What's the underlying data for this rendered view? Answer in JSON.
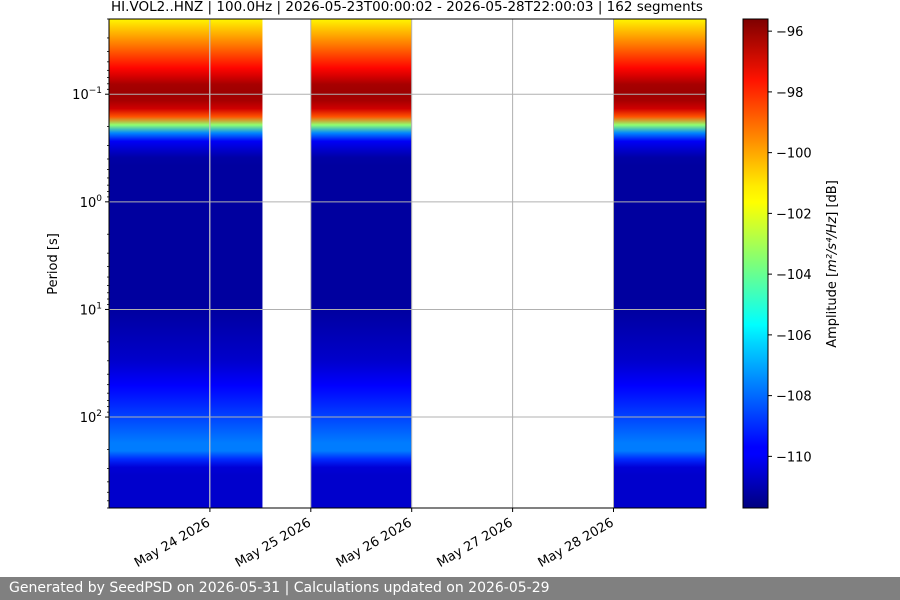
{
  "chart_data": {
    "type": "heatmap",
    "title": "HI.VOL2..HNZ | 100.0Hz | 2026-05-23T00:00:02 - 2026-05-28T22:00:03 | 162 segments",
    "ylabel": "Period [s]",
    "y_scale": "log",
    "y_inverted": true,
    "ylim": [
      0.02,
      700
    ],
    "xlim": [
      "2026-05-23T00:00",
      "2026-05-28T22:00"
    ],
    "x_ticks": [
      {
        "value": "2026-05-24T00:00",
        "label": "May 24 2026"
      },
      {
        "value": "2026-05-25T00:00",
        "label": "May 25 2026"
      },
      {
        "value": "2026-05-26T00:00",
        "label": "May 26 2026"
      },
      {
        "value": "2026-05-27T00:00",
        "label": "May 27 2026"
      },
      {
        "value": "2026-05-28T00:00",
        "label": "May 28 2026"
      }
    ],
    "y_ticks": [
      {
        "value": 0.1,
        "base": "10",
        "exp": "−1"
      },
      {
        "value": 1,
        "base": "10",
        "exp": "0"
      },
      {
        "value": 10,
        "base": "10",
        "exp": "1"
      },
      {
        "value": 100,
        "base": "10",
        "exp": "2"
      }
    ],
    "grid": true,
    "colormap": "jet",
    "colorbar": {
      "label_prefix": "Amplitude [",
      "label_math": "m²/s⁴/Hz",
      "label_suffix": "] [dB]",
      "range": [
        -111.7,
        -95.6
      ],
      "ticks": [
        -96,
        -98,
        -100,
        -102,
        -104,
        -106,
        -108,
        -110
      ]
    },
    "data_segments": [
      {
        "start": "2026-05-23T00:00",
        "end": "2026-05-23T23:50"
      },
      {
        "start": "2026-05-24T00:05",
        "end": "2026-05-24T12:30"
      },
      {
        "start": "2026-05-25T00:00",
        "end": "2026-05-25T23:55"
      },
      {
        "start": "2026-05-28T00:00",
        "end": "2026-05-28T22:00"
      }
    ],
    "amplitude_profile": [
      {
        "period": 0.02,
        "db": -101.5
      },
      {
        "period": 0.04,
        "db": -99.0
      },
      {
        "period": 0.06,
        "db": -97.5
      },
      {
        "period": 0.085,
        "db": -96.0
      },
      {
        "period": 0.13,
        "db": -96.3
      },
      {
        "period": 0.17,
        "db": -99.5
      },
      {
        "period": 0.2,
        "db": -104.5
      },
      {
        "period": 0.25,
        "db": -109.5
      },
      {
        "period": 0.4,
        "db": -111.2
      },
      {
        "period": 10,
        "db": -111.2
      },
      {
        "period": 30,
        "db": -110.5
      },
      {
        "period": 80,
        "db": -109.0
      },
      {
        "period": 200,
        "db": -107.5
      },
      {
        "period": 300,
        "db": -110.5
      },
      {
        "period": 700,
        "db": -110.5
      }
    ]
  },
  "footer": {
    "text": "Generated by SeedPSD on 2026-05-31 | Calculations updated on 2026-05-29"
  }
}
